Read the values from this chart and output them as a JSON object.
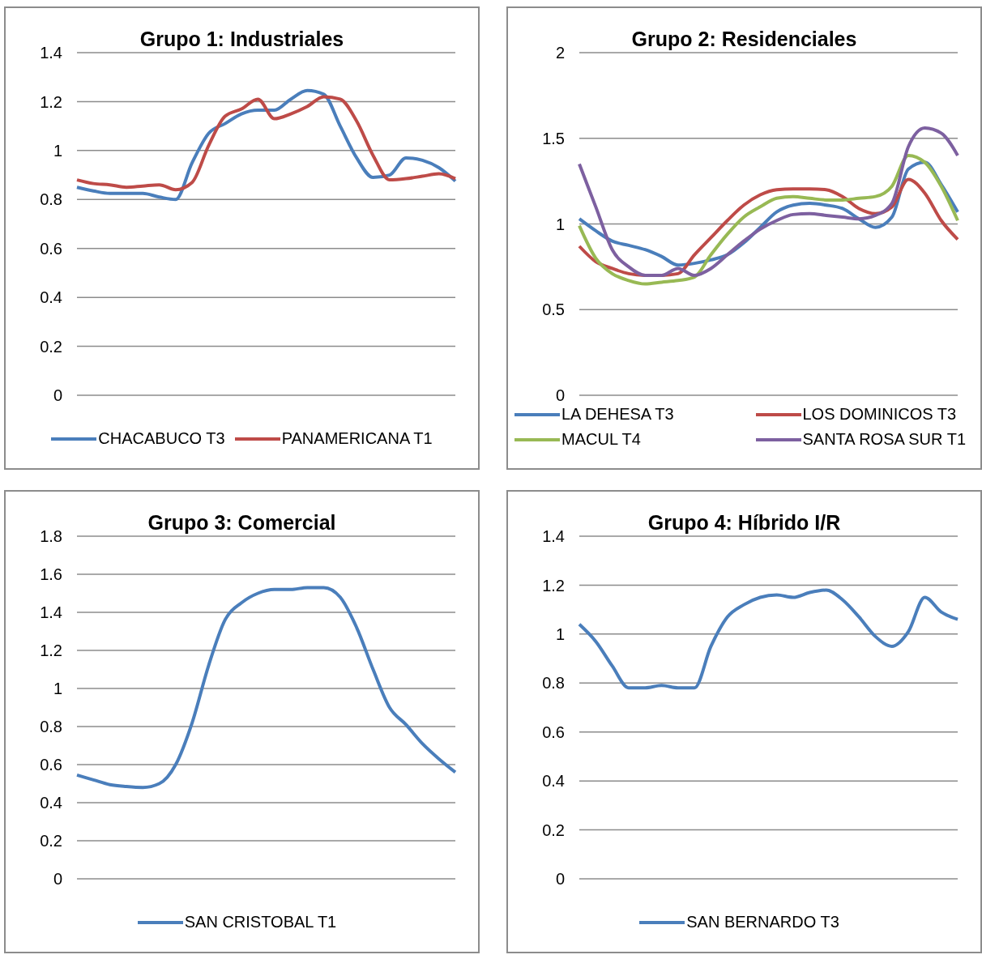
{
  "chart_data": [
    {
      "type": "line",
      "title": "Grupo 1: Industriales",
      "categories": [
        null,
        null,
        null,
        null,
        null,
        null,
        null,
        null,
        null,
        null,
        null,
        null,
        null,
        null,
        null,
        null,
        null,
        null,
        null,
        null,
        null,
        null,
        null,
        null
      ],
      "series": [
        {
          "name": "CHACABUCO T3",
          "color": "#4a7ebb",
          "values": [
            0.85,
            0.835,
            0.825,
            0.825,
            0.825,
            0.81,
            0.8,
            0.95,
            1.07,
            1.11,
            1.15,
            1.165,
            1.165,
            1.21,
            1.245,
            1.23,
            1.1,
            0.97,
            0.89,
            0.9,
            0.97,
            0.96,
            0.93,
            0.875
          ]
        },
        {
          "name": "PANAMERICANA T1",
          "color": "#be4b48",
          "values": [
            0.88,
            0.865,
            0.86,
            0.85,
            0.855,
            0.86,
            0.84,
            0.87,
            1.02,
            1.14,
            1.17,
            1.21,
            1.13,
            1.15,
            1.18,
            1.22,
            1.21,
            1.12,
            0.98,
            0.88,
            0.885,
            0.895,
            0.905,
            0.885
          ]
        }
      ],
      "ylim": [
        0,
        1.4
      ],
      "yticks": [
        0,
        0.2,
        0.4,
        0.6,
        0.8,
        1,
        1.2,
        1.4
      ],
      "grid": "y",
      "legend": "bottom",
      "tick_labels": "y"
    },
    {
      "type": "line",
      "title": "Grupo 2: Residenciales",
      "categories": [
        null,
        null,
        null,
        null,
        null,
        null,
        null,
        null,
        null,
        null,
        null,
        null,
        null,
        null,
        null,
        null,
        null,
        null,
        null,
        null,
        null,
        null,
        null,
        null
      ],
      "series": [
        {
          "name": "LA DEHESA T3",
          "color": "#4a7ebb",
          "values": [
            1.03,
            0.96,
            0.9,
            0.875,
            0.85,
            0.81,
            0.76,
            0.77,
            0.79,
            0.82,
            0.89,
            0.98,
            1.07,
            1.11,
            1.12,
            1.11,
            1.09,
            1.03,
            0.98,
            1.04,
            1.32,
            1.36,
            1.23,
            1.07
          ]
        },
        {
          "name": "LOS DOMINICOS T3",
          "color": "#be4b48",
          "values": [
            0.87,
            0.78,
            0.74,
            0.71,
            0.7,
            0.7,
            0.71,
            0.82,
            0.92,
            1.02,
            1.11,
            1.17,
            1.2,
            1.205,
            1.205,
            1.2,
            1.16,
            1.09,
            1.06,
            1.1,
            1.26,
            1.18,
            1.02,
            0.91
          ]
        },
        {
          "name": "MACUL T4",
          "color": "#98b954",
          "values": [
            0.99,
            0.8,
            0.71,
            0.67,
            0.65,
            0.66,
            0.67,
            0.69,
            0.82,
            0.94,
            1.04,
            1.1,
            1.15,
            1.16,
            1.15,
            1.14,
            1.14,
            1.15,
            1.16,
            1.22,
            1.4,
            1.36,
            1.22,
            1.02
          ]
        },
        {
          "name": "SANTA ROSA SUR T1",
          "color": "#7d60a0",
          "values": [
            1.35,
            1.1,
            0.85,
            0.75,
            0.7,
            0.7,
            0.74,
            0.7,
            0.74,
            0.82,
            0.9,
            0.97,
            1.02,
            1.055,
            1.06,
            1.05,
            1.04,
            1.03,
            1.05,
            1.12,
            1.45,
            1.56,
            1.53,
            1.4
          ]
        }
      ],
      "ylim": [
        0,
        2
      ],
      "yticks": [
        0,
        0.5,
        1,
        1.5,
        2
      ],
      "grid": "y",
      "legend": "bottom",
      "tick_labels": "y"
    },
    {
      "type": "line",
      "title": "Grupo 3: Comercial",
      "categories": [
        null,
        null,
        null,
        null,
        null,
        null,
        null,
        null,
        null,
        null,
        null,
        null,
        null,
        null,
        null,
        null,
        null,
        null,
        null,
        null,
        null,
        null,
        null,
        null
      ],
      "series": [
        {
          "name": "SAN CRISTOBAL T1",
          "color": "#4a7ebb",
          "values": [
            0.545,
            0.52,
            0.495,
            0.485,
            0.48,
            0.5,
            0.6,
            0.82,
            1.12,
            1.36,
            1.45,
            1.5,
            1.52,
            1.52,
            1.53,
            1.53,
            1.48,
            1.32,
            1.1,
            0.9,
            0.81,
            0.71,
            0.63,
            0.56
          ]
        }
      ],
      "ylim": [
        0,
        1.8
      ],
      "yticks": [
        0,
        0.2,
        0.4,
        0.6,
        0.8,
        1,
        1.2,
        1.4,
        1.6,
        1.8
      ],
      "grid": "y",
      "legend": "bottom",
      "tick_labels": "y"
    },
    {
      "type": "line",
      "title": "Grupo 4: Híbrido I/R",
      "categories": [
        null,
        null,
        null,
        null,
        null,
        null,
        null,
        null,
        null,
        null,
        null,
        null,
        null,
        null,
        null,
        null,
        null,
        null,
        null,
        null,
        null,
        null,
        null,
        null
      ],
      "series": [
        {
          "name": "SAN BERNARDO T3",
          "color": "#4a7ebb",
          "values": [
            1.04,
            0.97,
            0.87,
            0.78,
            0.78,
            0.79,
            0.78,
            0.78,
            0.95,
            1.07,
            1.12,
            1.15,
            1.16,
            1.15,
            1.17,
            1.18,
            1.14,
            1.07,
            0.99,
            0.95,
            1.01,
            1.15,
            1.09,
            1.06
          ]
        }
      ],
      "ylim": [
        0,
        1.4
      ],
      "yticks": [
        0,
        0.2,
        0.4,
        0.6,
        0.8,
        1,
        1.2,
        1.4
      ],
      "grid": "y",
      "legend": "bottom",
      "tick_labels": "y"
    }
  ]
}
